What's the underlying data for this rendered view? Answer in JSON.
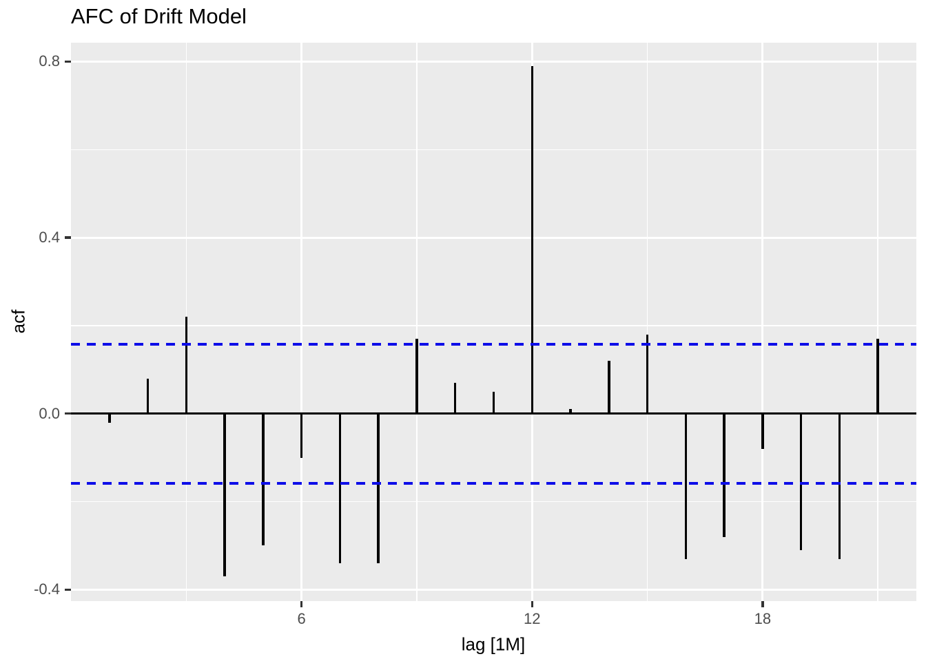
{
  "title": "AFC of Drift Model",
  "axes": {
    "x": {
      "title": "lag [1M]",
      "major_ticks": [
        6,
        12,
        18
      ],
      "minor_ticks": [
        3,
        9,
        15,
        21
      ],
      "tick_labels": [
        "6",
        "12",
        "18"
      ],
      "lim": [
        0,
        22
      ]
    },
    "y": {
      "title": "acf",
      "major_ticks": [
        -0.4,
        0.0,
        0.4,
        0.8
      ],
      "minor_ticks": [
        -0.2,
        0.2,
        0.6
      ],
      "tick_labels": [
        "-0.4",
        "0.0",
        "0.4",
        "0.8"
      ],
      "lim": [
        -0.426,
        0.843
      ]
    }
  },
  "chart_data": {
    "type": "bar",
    "subtype": "acf-spike-segments",
    "title": "AFC of Drift Model",
    "xlabel": "lag [1M]",
    "ylabel": "acf",
    "x": [
      1,
      2,
      3,
      4,
      5,
      6,
      7,
      8,
      9,
      10,
      11,
      12,
      13,
      14,
      15,
      16,
      17,
      18,
      19,
      20,
      21
    ],
    "values": [
      -0.02,
      0.08,
      0.22,
      -0.37,
      -0.3,
      -0.1,
      -0.34,
      -0.34,
      0.17,
      0.07,
      0.05,
      0.79,
      0.01,
      0.12,
      0.18,
      -0.33,
      -0.28,
      -0.08,
      -0.31,
      -0.33,
      0.17
    ],
    "zero_line": 0.0,
    "confidence_bounds": {
      "upper": 0.158,
      "lower": -0.158,
      "line_style": "dashed",
      "color": "#0D0DE8"
    },
    "xlim": [
      0,
      22
    ],
    "ylim": [
      -0.426,
      0.843
    ],
    "grid": true,
    "legend": false
  },
  "colors": {
    "figure_background": "#FFFFFF",
    "panel_background": "#EBEBEB",
    "gridline": "#FFFFFF",
    "spike": "#000000",
    "zero_line": "#000000",
    "confidence_line": "#0D0DE8",
    "tick_mark": "#333333",
    "tick_label": "#4D4D4D",
    "axis_title": "#000000",
    "title": "#000000"
  }
}
